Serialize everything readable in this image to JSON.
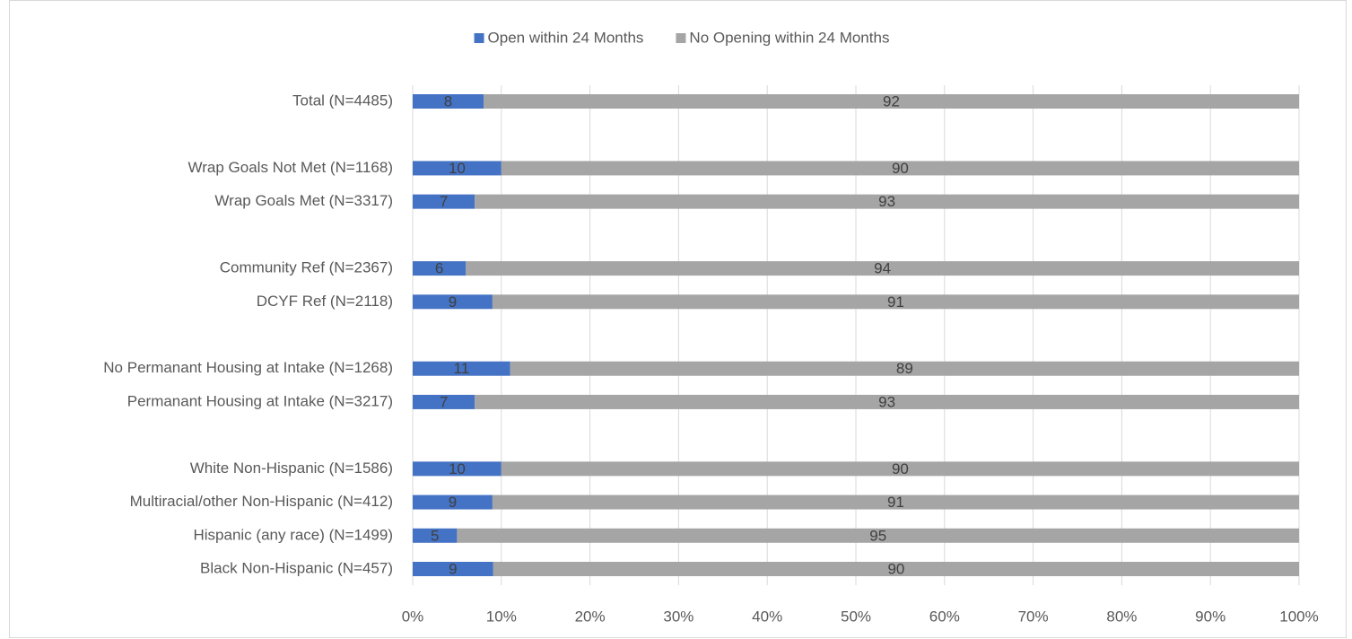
{
  "chart_data": {
    "type": "bar",
    "orientation": "horizontal",
    "stack": "percent",
    "categories": [
      "Total (N=4485)",
      null,
      "Wrap Goals Not Met (N=1168)",
      "Wrap Goals Met (N=3317)",
      null,
      "Community Ref (N=2367)",
      "DCYF Ref (N=2118)",
      null,
      "No Permanant Housing at Intake (N=1268)",
      "Permanant Housing at Intake (N=3217)",
      null,
      "White Non-Hispanic (N=1586)",
      "Multiracial/other Non-Hispanic (N=412)",
      "Hispanic (any race) (N=1499)",
      "Black Non-Hispanic (N=457)"
    ],
    "series": [
      {
        "name": "Open within 24 Months",
        "color": "#4472c4",
        "values": [
          8,
          null,
          10,
          7,
          null,
          6,
          9,
          null,
          11,
          7,
          null,
          10,
          9,
          5,
          9
        ]
      },
      {
        "name": "No Opening within 24 Months",
        "color": "#a5a5a5",
        "values": [
          92,
          null,
          90,
          93,
          null,
          94,
          91,
          null,
          89,
          93,
          null,
          90,
          91,
          95,
          90
        ]
      }
    ],
    "xlim": [
      0,
      100
    ],
    "xticks": [
      {
        "value": 0,
        "label": "0%"
      },
      {
        "value": 10,
        "label": "10%"
      },
      {
        "value": 20,
        "label": "20%"
      },
      {
        "value": 30,
        "label": "30%"
      },
      {
        "value": 40,
        "label": "40%"
      },
      {
        "value": 50,
        "label": "50%"
      },
      {
        "value": 60,
        "label": "60%"
      },
      {
        "value": 70,
        "label": "70%"
      },
      {
        "value": 80,
        "label": "80%"
      },
      {
        "value": 90,
        "label": "90%"
      },
      {
        "value": 100,
        "label": "100%"
      }
    ],
    "grid": true,
    "legend": "top",
    "data_labels": true
  }
}
